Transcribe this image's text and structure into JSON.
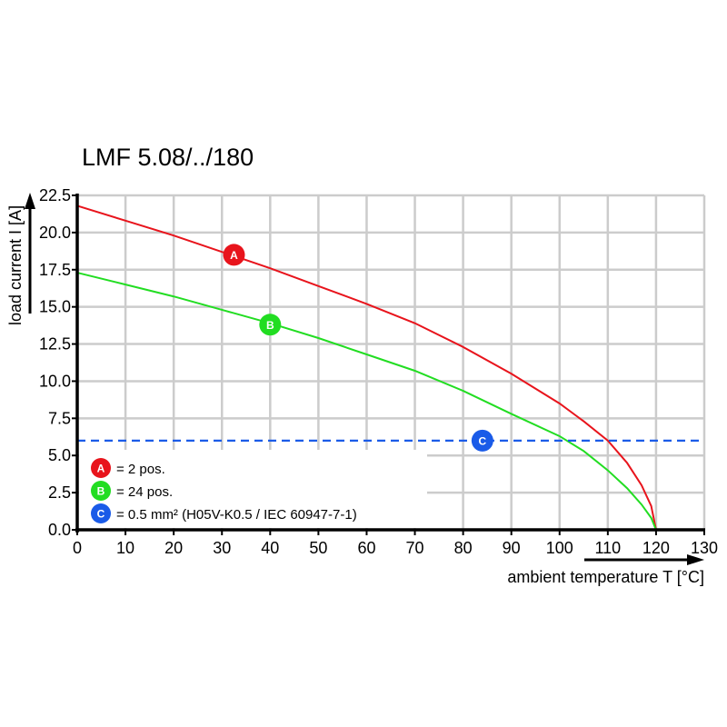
{
  "chart_data": {
    "type": "line",
    "title": "LMF 5.08/../180",
    "xlabel": "ambient temperature T [°C]",
    "ylabel": "load current I [A]",
    "xlim": [
      0,
      130
    ],
    "ylim": [
      0,
      22.5
    ],
    "xticks": [
      "0",
      "10",
      "20",
      "30",
      "40",
      "50",
      "60",
      "70",
      "80",
      "90",
      "100",
      "110",
      "120",
      "130"
    ],
    "yticks": [
      "0.0",
      "2.5",
      "5.0",
      "7.5",
      "10.0",
      "12.5",
      "15.0",
      "17.5",
      "20.0",
      "22.5"
    ],
    "grid": true,
    "series": [
      {
        "name": "A",
        "color": "#e8141c",
        "marker_at": [
          32.5,
          18.5
        ],
        "x": [
          0,
          10,
          20,
          30,
          40,
          50,
          60,
          70,
          80,
          90,
          100,
          105,
          110,
          114,
          117,
          119,
          120
        ],
        "y": [
          21.8,
          20.8,
          19.8,
          18.7,
          17.6,
          16.4,
          15.2,
          13.9,
          12.3,
          10.5,
          8.5,
          7.3,
          6.0,
          4.5,
          3.0,
          1.6,
          0
        ]
      },
      {
        "name": "B",
        "color": "#22dd22",
        "marker_at": [
          40,
          13.8
        ],
        "x": [
          0,
          10,
          20,
          30,
          40,
          50,
          60,
          70,
          80,
          90,
          100,
          105,
          110,
          114,
          117,
          119,
          120
        ],
        "y": [
          17.3,
          16.5,
          15.7,
          14.8,
          13.9,
          12.9,
          11.8,
          10.7,
          9.35,
          7.8,
          6.3,
          5.3,
          4.0,
          2.8,
          1.7,
          0.8,
          0
        ]
      },
      {
        "name": "C",
        "color": "#1a5be8",
        "style": "dashed",
        "marker_at": [
          84,
          6
        ],
        "x": [
          0,
          130
        ],
        "y": [
          6,
          6
        ]
      }
    ],
    "legend": {
      "placement": "bottom-left",
      "entries": [
        {
          "key": "A",
          "label": "= 2 pos.",
          "color": "#e8141c"
        },
        {
          "key": "B",
          "label": "= 24 pos.",
          "color": "#22dd22"
        },
        {
          "key": "C",
          "label": "= 0.5 mm² (H05V-K0.5 / IEC 60947-7-1)",
          "color": "#1a5be8"
        }
      ]
    }
  }
}
